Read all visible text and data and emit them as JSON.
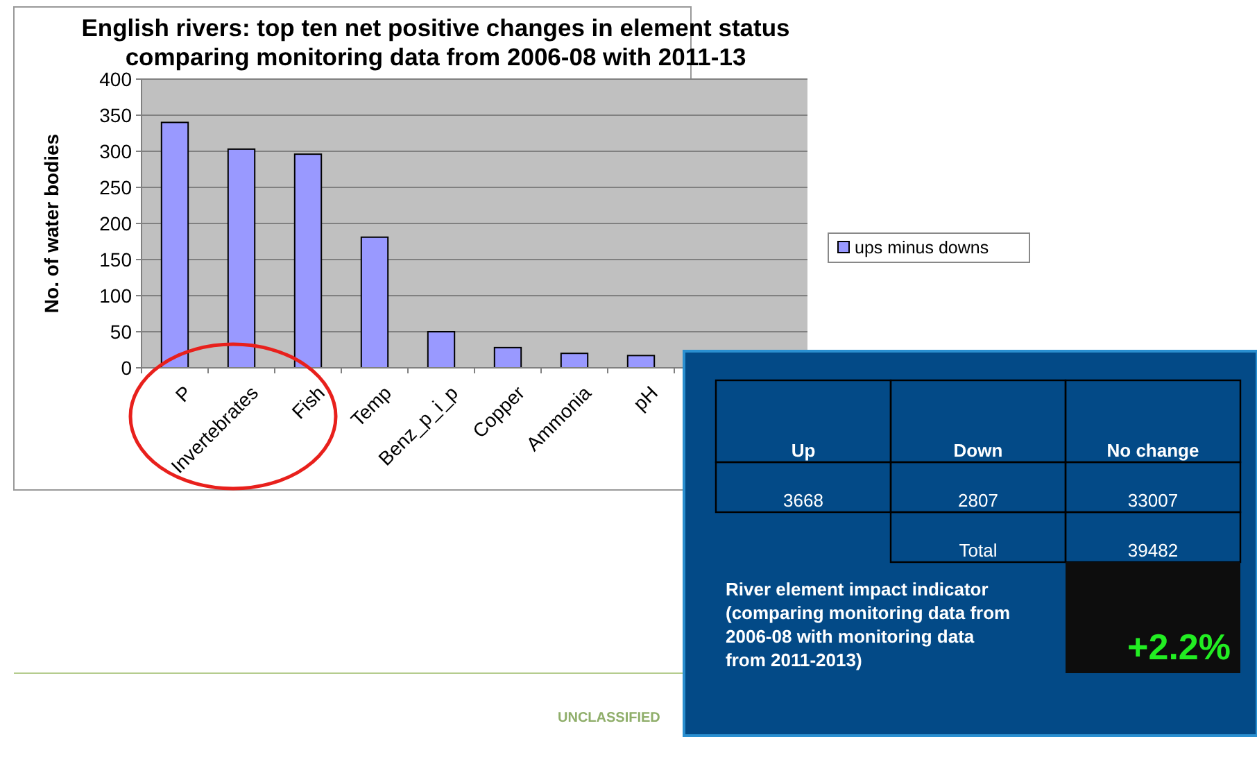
{
  "chart_data": [
    {
      "type": "bar",
      "title": "English rivers: top ten net positive changes in element status comparing monitoring data from 2006-08 with 2011-13",
      "ylabel": "No. of water bodies",
      "categories": [
        "P",
        "Invertebrates",
        "Fish",
        "Temp",
        "Benz_p_i_p",
        "Copper",
        "Ammonia",
        "pH",
        null,
        null
      ],
      "series": [
        {
          "name": "ups minus downs",
          "color": "#9999ff",
          "values": [
            340,
            303,
            296,
            181,
            50,
            28,
            20,
            17,
            null,
            null
          ]
        }
      ],
      "ylim": [
        0,
        400
      ],
      "yticks": [
        0,
        50,
        100,
        150,
        200,
        250,
        300,
        350,
        400
      ],
      "grid": "y",
      "legend": "right",
      "annotations": [
        "UNCLASSIFIED"
      ]
    },
    {
      "type": "other",
      "annotations": [
        "Up",
        "Down",
        "No change",
        "3668",
        "2807",
        "33007",
        "Total",
        "39482",
        "River element impact indicator (comparing monitoring data from 2006-08 with monitoring data from 2011-2013)",
        "+2.2%"
      ]
    }
  ]
}
